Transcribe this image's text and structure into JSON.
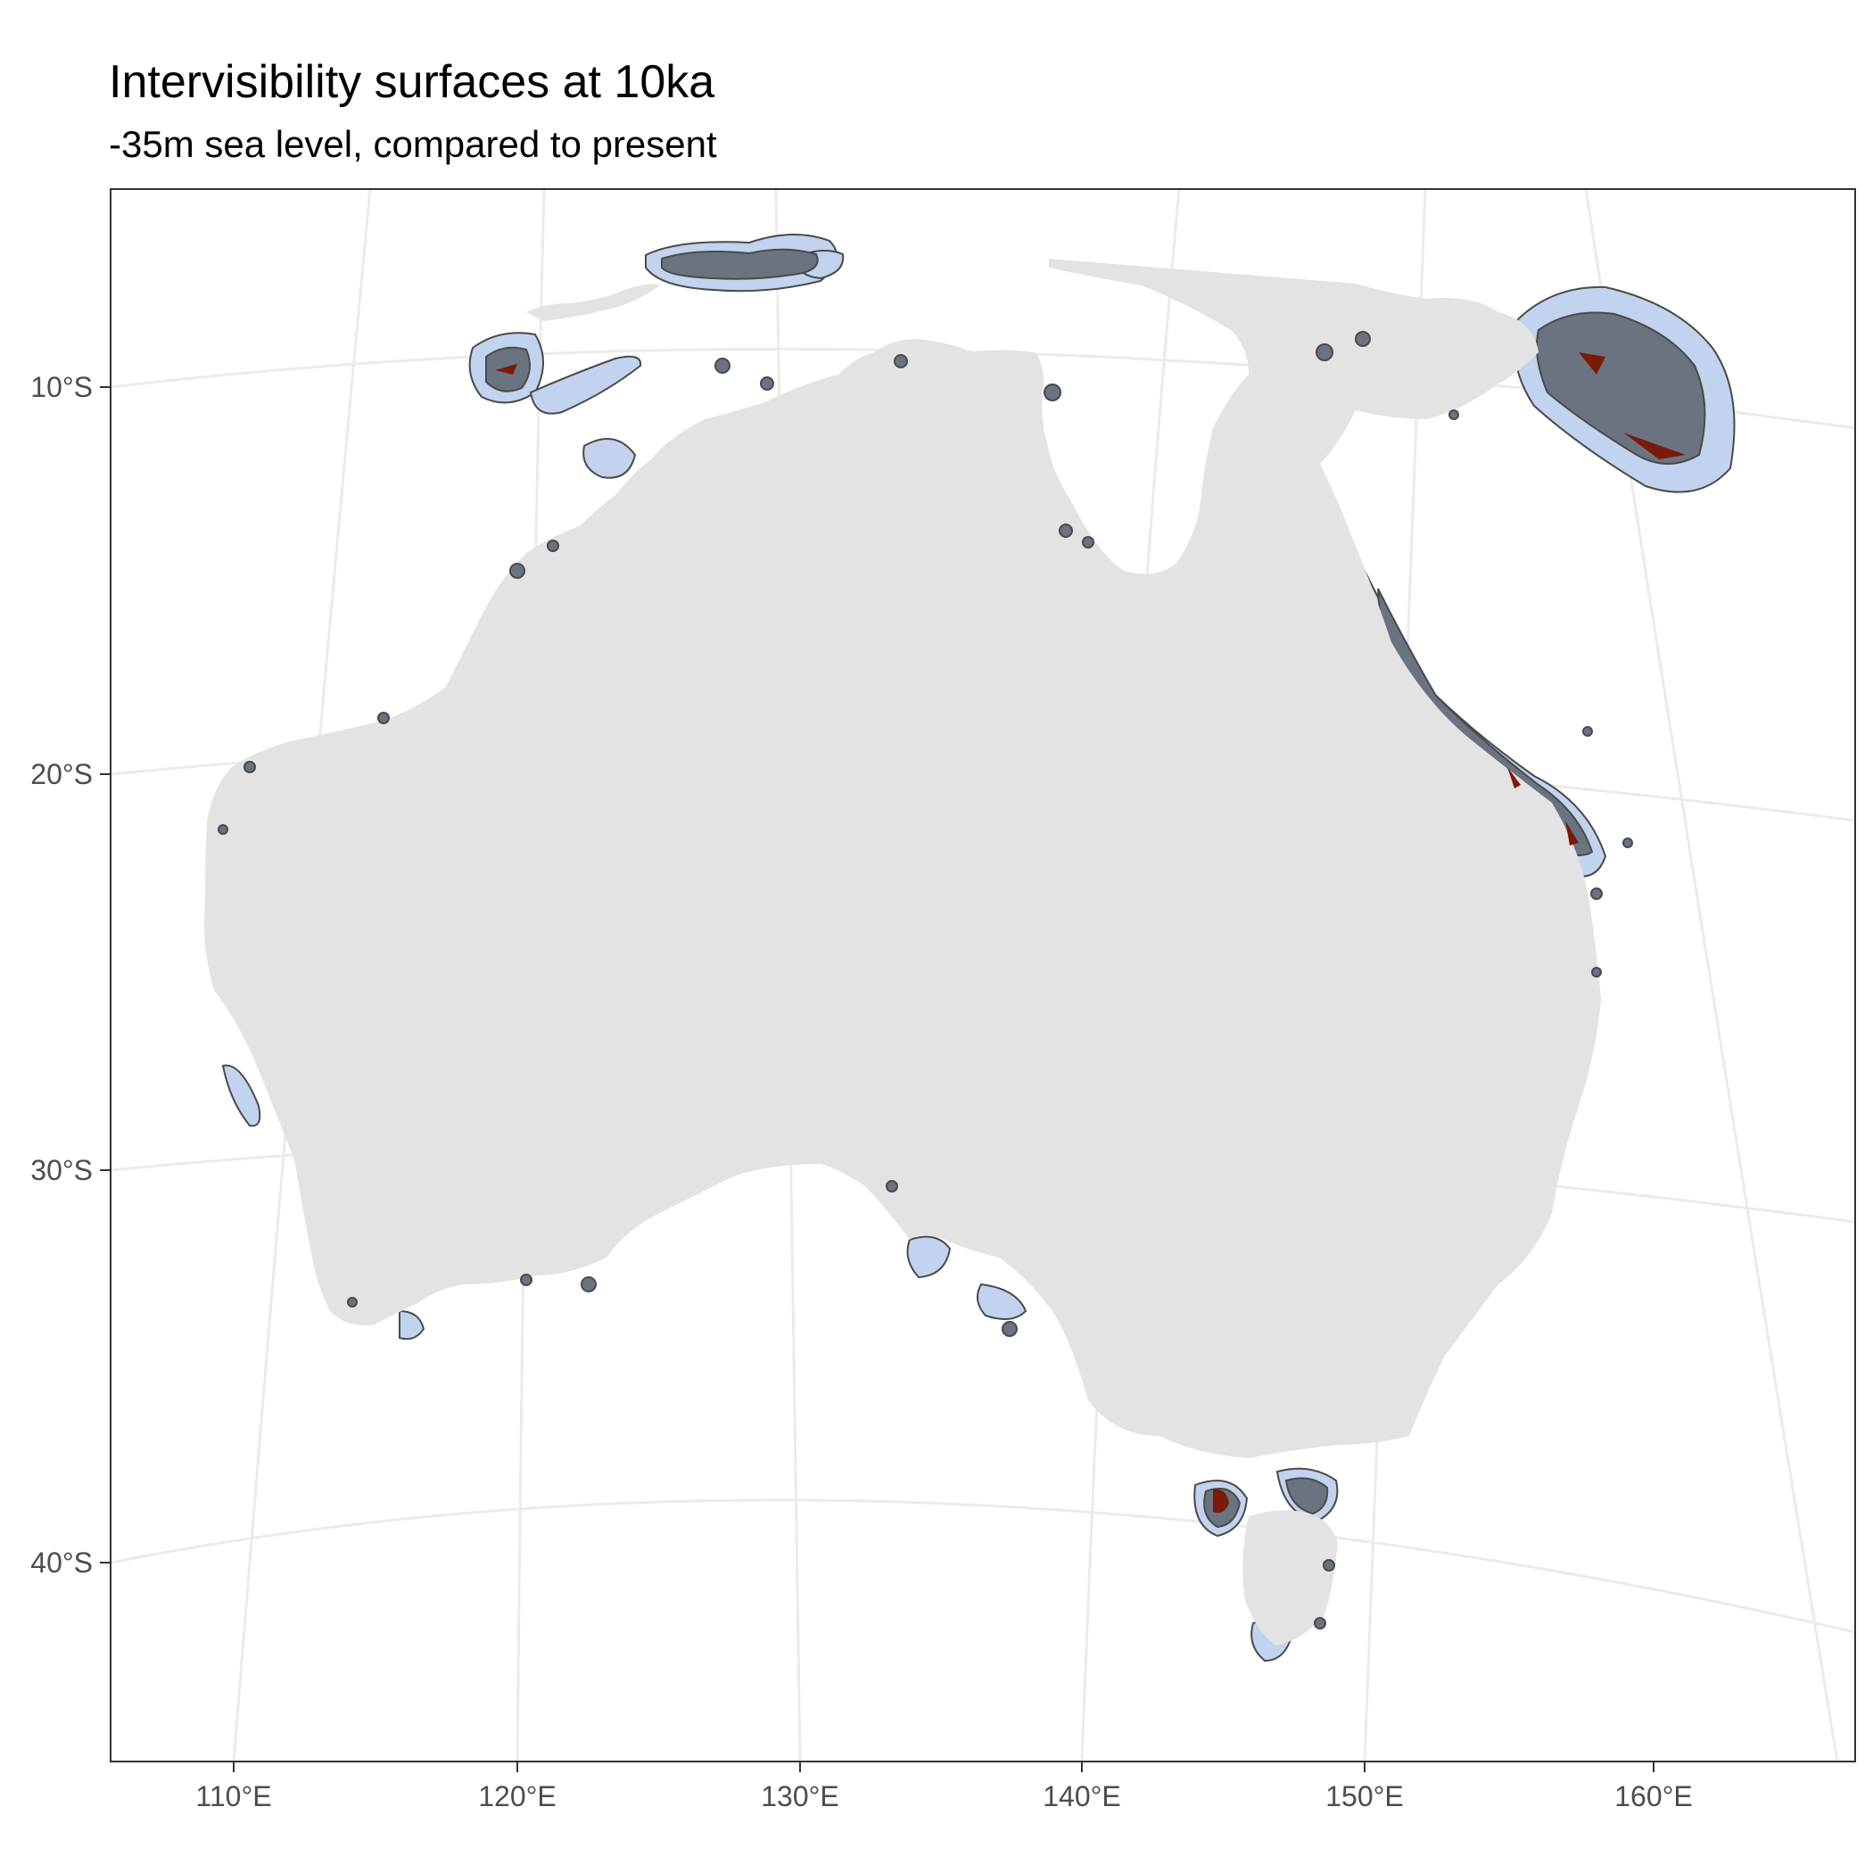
{
  "title": "Intervisibility surfaces at 10ka",
  "subtitle": "-35m sea level, compared to present",
  "axes": {
    "y_ticks": [
      "10°S",
      "20°S",
      "30°S",
      "40°S"
    ],
    "x_ticks": [
      "110°E",
      "120°E",
      "130°E",
      "140°E",
      "150°E",
      "160°E"
    ]
  },
  "colors": {
    "land": "#e3e3e3",
    "visibility_outer": "#c1d3ee",
    "visibility_inner": "#6a7480",
    "visibility_core": "#7a1a08",
    "outline": "#4a4a4a",
    "graticule": "#ebebeb",
    "panel_border": "#333333"
  }
}
